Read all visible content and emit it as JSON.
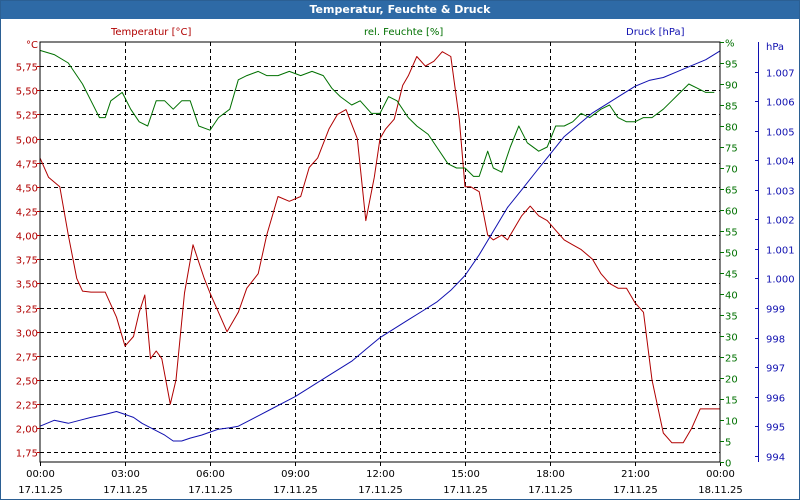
{
  "window": {
    "title": "Temperatur, Feuchte & Druck"
  },
  "legend": {
    "temperature": "Temperatur [°C]",
    "humidity": "rel. Feuchte [%]",
    "pressure": "Druck [hPa]"
  },
  "units": {
    "left": "°C",
    "right1": "%",
    "right2": "hPa"
  },
  "colors": {
    "temperature": "#b00000",
    "humidity": "#007000",
    "pressure": "#1010b0",
    "title_bar": "#2e6aa6"
  },
  "chart_data": {
    "type": "line",
    "title": "Temperatur, Feuchte & Druck",
    "x_tick_labels": [
      {
        "time": "00:00",
        "date": "17.11.25"
      },
      {
        "time": "03:00",
        "date": "17.11.25"
      },
      {
        "time": "06:00",
        "date": "17.11.25"
      },
      {
        "time": "09:00",
        "date": "17.11.25"
      },
      {
        "time": "12:00",
        "date": "17.11.25"
      },
      {
        "time": "15:00",
        "date": "17.11.25"
      },
      {
        "time": "18:00",
        "date": "17.11.25"
      },
      {
        "time": "21:00",
        "date": "17.11.25"
      },
      {
        "time": "00:00",
        "date": "18.11.25"
      }
    ],
    "x_range_hours": [
      0,
      24
    ],
    "axes": {
      "temperature": {
        "range": [
          1.65,
          6.0
        ],
        "ticks": [
          "1,75",
          "2,00",
          "2,25",
          "2,50",
          "2,75",
          "3,00",
          "3,25",
          "3,50",
          "3,75",
          "4,00",
          "4,25",
          "4,50",
          "4,75",
          "5,00",
          "5,25",
          "5,50",
          "5,75"
        ],
        "tick_values": [
          1.75,
          2.0,
          2.25,
          2.5,
          2.75,
          3.0,
          3.25,
          3.5,
          3.75,
          4.0,
          4.25,
          4.5,
          4.75,
          5.0,
          5.25,
          5.5,
          5.75
        ]
      },
      "humidity": {
        "range": [
          0,
          100
        ],
        "ticks": [
          "0",
          "5",
          "10",
          "15",
          "20",
          "25",
          "30",
          "35",
          "40",
          "45",
          "50",
          "55",
          "60",
          "65",
          "70",
          "75",
          "80",
          "85",
          "90",
          "95",
          "%"
        ],
        "tick_values": [
          0,
          5,
          10,
          15,
          20,
          25,
          30,
          35,
          40,
          45,
          50,
          55,
          60,
          65,
          70,
          75,
          80,
          85,
          90,
          95,
          100
        ]
      },
      "pressure": {
        "range": [
          993.79,
          1008.0
        ],
        "ticks": [
          "994",
          "995",
          "996",
          "997",
          "998",
          "999",
          "1.000",
          "1.001",
          "1.002",
          "1.003",
          "1.004",
          "1.005",
          "1.006",
          "1.007"
        ],
        "tick_values": [
          994,
          995,
          996,
          997,
          998,
          999,
          1000,
          1001,
          1002,
          1003,
          1004,
          1005,
          1006,
          1007
        ]
      }
    },
    "series": [
      {
        "name": "Temperatur [°C]",
        "axis": "temperature",
        "hours": [
          0,
          0.3,
          0.7,
          1.0,
          1.3,
          1.5,
          1.8,
          2.3,
          2.7,
          3.0,
          3.3,
          3.5,
          3.7,
          3.9,
          4.1,
          4.3,
          4.6,
          4.8,
          5.1,
          5.4,
          5.8,
          6.0,
          6.3,
          6.6,
          7.0,
          7.3,
          7.7,
          8.0,
          8.4,
          8.8,
          9.2,
          9.5,
          9.8,
          10.2,
          10.5,
          10.8,
          11.2,
          11.5,
          11.8,
          12.0,
          12.2,
          12.5,
          12.8,
          13.0,
          13.3,
          13.6,
          13.9,
          14.2,
          14.5,
          14.8,
          15.0,
          15.2,
          15.5,
          15.8,
          16.0,
          16.3,
          16.5,
          16.8,
          17.0,
          17.3,
          17.6,
          17.9,
          18.2,
          18.5,
          18.8,
          19.1,
          19.5,
          19.8,
          20.1,
          20.4,
          20.7,
          21.0,
          21.3,
          21.6,
          22.0,
          22.3,
          22.7,
          23.0,
          23.3,
          23.6,
          24.0
        ],
        "values": [
          4.8,
          4.6,
          4.5,
          4.0,
          3.55,
          3.42,
          3.41,
          3.41,
          3.15,
          2.85,
          2.95,
          3.2,
          3.38,
          2.72,
          2.8,
          2.72,
          2.25,
          2.5,
          3.4,
          3.9,
          3.55,
          3.4,
          3.2,
          3.0,
          3.2,
          3.45,
          3.6,
          4.0,
          4.4,
          4.35,
          4.4,
          4.7,
          4.8,
          5.1,
          5.25,
          5.3,
          5.0,
          4.15,
          4.6,
          5.0,
          5.1,
          5.2,
          5.55,
          5.65,
          5.85,
          5.75,
          5.8,
          5.9,
          5.85,
          5.2,
          4.5,
          4.5,
          4.45,
          4.0,
          3.95,
          4.0,
          3.95,
          4.1,
          4.2,
          4.3,
          4.2,
          4.15,
          4.05,
          3.95,
          3.9,
          3.85,
          3.75,
          3.6,
          3.5,
          3.45,
          3.45,
          3.3,
          3.2,
          2.5,
          1.95,
          1.85,
          1.85,
          2.0,
          2.2,
          2.2,
          2.2
        ]
      },
      {
        "name": "rel. Feuchte [%]",
        "axis": "humidity",
        "hours": [
          0,
          0.5,
          1.0,
          1.5,
          1.8,
          2.1,
          2.3,
          2.5,
          2.9,
          3.2,
          3.5,
          3.8,
          4.1,
          4.4,
          4.7,
          5.0,
          5.3,
          5.6,
          6.0,
          6.3,
          6.7,
          7.0,
          7.3,
          7.7,
          8.0,
          8.4,
          8.8,
          9.2,
          9.6,
          10.0,
          10.3,
          10.6,
          11.0,
          11.3,
          11.7,
          12.0,
          12.3,
          12.6,
          13.0,
          13.3,
          13.7,
          14.0,
          14.4,
          14.7,
          15.0,
          15.3,
          15.5,
          15.8,
          16.0,
          16.3,
          16.6,
          16.9,
          17.2,
          17.6,
          17.9,
          18.2,
          18.5,
          18.8,
          19.1,
          19.4,
          19.8,
          20.1,
          20.4,
          20.7,
          21.0,
          21.3,
          21.6,
          22.0,
          22.3,
          22.6,
          22.9,
          23.2,
          23.5,
          23.8
        ],
        "values": [
          98,
          97,
          95,
          90,
          86,
          82,
          82,
          86,
          88,
          84,
          81,
          80,
          86,
          86,
          84,
          86,
          86,
          80,
          79,
          82,
          84,
          91,
          92,
          93,
          92,
          92,
          93,
          92,
          93,
          92,
          89,
          87,
          85,
          86,
          83,
          83,
          87,
          86,
          82,
          80,
          78,
          75,
          71,
          70,
          70,
          68,
          68,
          74,
          70,
          69,
          75,
          80,
          76,
          74,
          75,
          80,
          80,
          81,
          83,
          82,
          84,
          85,
          82,
          81,
          81,
          82,
          82,
          84,
          86,
          88,
          90,
          89,
          88,
          88
        ]
      },
      {
        "name": "Druck [hPa]",
        "axis": "pressure",
        "hours": [
          0,
          0.5,
          1.0,
          1.4,
          1.8,
          2.3,
          2.7,
          3.0,
          3.3,
          3.6,
          4.0,
          4.4,
          4.7,
          5.0,
          5.3,
          5.7,
          6.0,
          6.3,
          6.7,
          7.0,
          7.4,
          7.8,
          8.2,
          8.6,
          9.0,
          9.5,
          10.0,
          10.5,
          11.0,
          11.5,
          12.0,
          12.5,
          13.0,
          13.5,
          14.0,
          14.5,
          15.0,
          15.5,
          16.0,
          16.5,
          17.0,
          17.5,
          18.0,
          18.5,
          19.0,
          19.5,
          20.0,
          20.5,
          21.0,
          21.5,
          22.0,
          22.5,
          23.0,
          23.5,
          24.0
        ],
        "values": [
          995.0,
          995.2,
          995.1,
          995.2,
          995.3,
          995.4,
          995.5,
          995.4,
          995.3,
          995.1,
          994.9,
          994.7,
          994.5,
          994.5,
          994.6,
          994.7,
          994.8,
          994.9,
          994.95,
          995.0,
          995.2,
          995.4,
          995.6,
          995.8,
          996.0,
          996.3,
          996.6,
          996.9,
          997.2,
          997.6,
          998.0,
          998.3,
          998.6,
          998.9,
          999.2,
          999.6,
          1000.1,
          1000.8,
          1001.6,
          1002.4,
          1003.0,
          1003.6,
          1004.2,
          1004.8,
          1005.2,
          1005.6,
          1005.9,
          1006.2,
          1006.5,
          1006.7,
          1006.8,
          1007.0,
          1007.2,
          1007.4,
          1007.7
        ]
      }
    ]
  }
}
